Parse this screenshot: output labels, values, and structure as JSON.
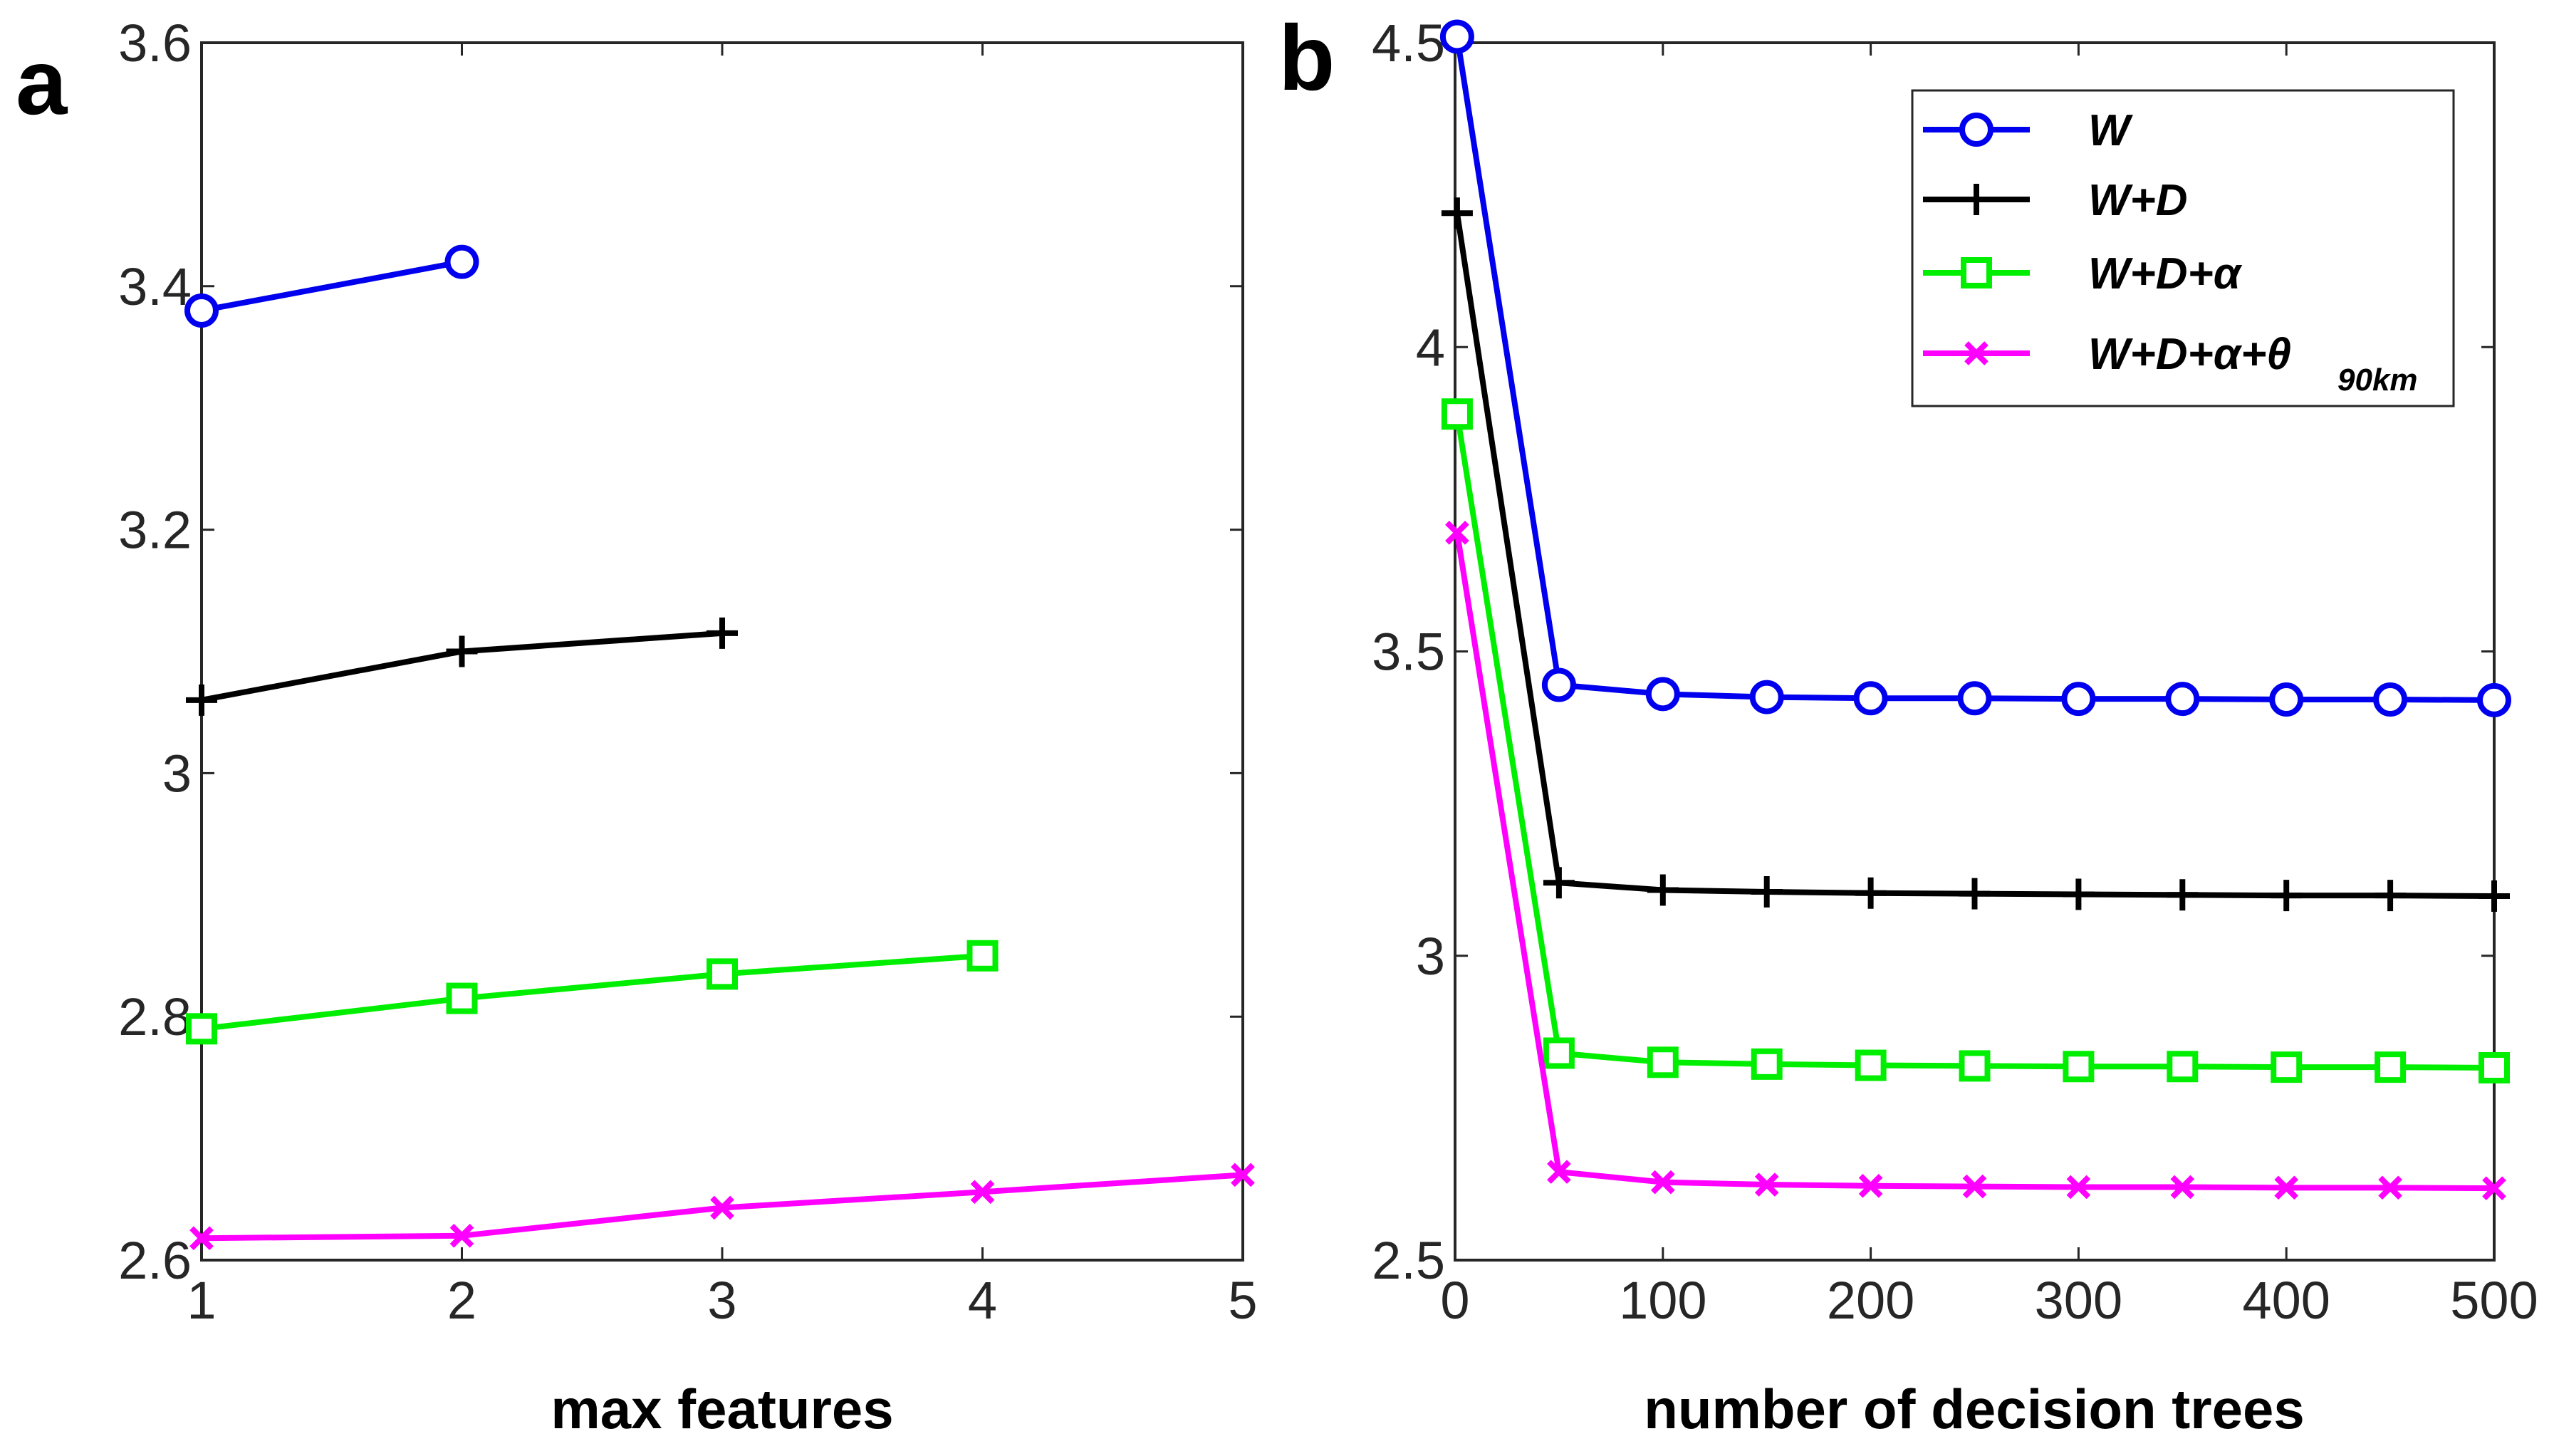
{
  "chart_data": [
    {
      "type": "line",
      "panel_label": "a",
      "title": "",
      "xlabel": "max features",
      "ylabel": "",
      "xlim": [
        1,
        5
      ],
      "ylim": [
        2.6,
        3.6
      ],
      "xticks": [
        "1",
        "2",
        "3",
        "4",
        "5"
      ],
      "yticks": [
        "2.6",
        "2.8",
        "3",
        "3.2",
        "3.4",
        "3.6"
      ],
      "grid": false,
      "series": [
        {
          "name": "W",
          "color": "#0000ee",
          "marker": "circle",
          "x": [
            1,
            2
          ],
          "values": [
            3.38,
            3.42
          ]
        },
        {
          "name": "W+D",
          "color": "#000000",
          "marker": "plus",
          "x": [
            1,
            2,
            3
          ],
          "values": [
            3.06,
            3.1,
            3.115
          ]
        },
        {
          "name": "W+D+α",
          "color": "#00ee00",
          "marker": "square",
          "x": [
            1,
            2,
            3,
            4
          ],
          "values": [
            2.79,
            2.815,
            2.835,
            2.85
          ]
        },
        {
          "name": "W+D+α+θ 90km",
          "color": "#ff00ff",
          "marker": "x",
          "x": [
            1,
            2,
            3,
            4,
            5
          ],
          "values": [
            2.618,
            2.62,
            2.643,
            2.656,
            2.67
          ]
        }
      ]
    },
    {
      "type": "line",
      "panel_label": "b",
      "title": "",
      "xlabel": "number of decision trees",
      "ylabel": "",
      "xlim": [
        0,
        500
      ],
      "ylim": [
        2.5,
        4.5
      ],
      "xticks": [
        "0",
        "100",
        "200",
        "300",
        "400",
        "500"
      ],
      "yticks": [
        "2.5",
        "3",
        "3.5",
        "4",
        "4.5"
      ],
      "grid": false,
      "legend": {
        "position": "top-right",
        "entries": [
          {
            "label": "W",
            "sub": ""
          },
          {
            "label": "W+D",
            "sub": ""
          },
          {
            "label": "W+D+α",
            "sub": ""
          },
          {
            "label": "W+D+α+θ",
            "sub": "90km"
          }
        ]
      },
      "x": [
        1,
        50,
        100,
        150,
        200,
        250,
        300,
        350,
        400,
        450,
        500
      ],
      "series": [
        {
          "name": "W",
          "color": "#0000ee",
          "marker": "circle",
          "values": [
            4.51,
            3.445,
            3.43,
            3.425,
            3.423,
            3.423,
            3.422,
            3.422,
            3.421,
            3.421,
            3.42
          ]
        },
        {
          "name": "W+D",
          "color": "#000000",
          "marker": "plus",
          "values": [
            4.22,
            3.12,
            3.108,
            3.105,
            3.103,
            3.102,
            3.101,
            3.1,
            3.099,
            3.099,
            3.098
          ]
        },
        {
          "name": "W+D+α",
          "color": "#00ee00",
          "marker": "square",
          "values": [
            3.89,
            2.84,
            2.825,
            2.822,
            2.82,
            2.819,
            2.818,
            2.818,
            2.817,
            2.817,
            2.816
          ]
        },
        {
          "name": "W+D+α+θ 90km",
          "color": "#ff00ff",
          "marker": "x",
          "values": [
            3.695,
            2.645,
            2.628,
            2.624,
            2.622,
            2.621,
            2.62,
            2.62,
            2.619,
            2.619,
            2.618
          ]
        }
      ]
    }
  ]
}
